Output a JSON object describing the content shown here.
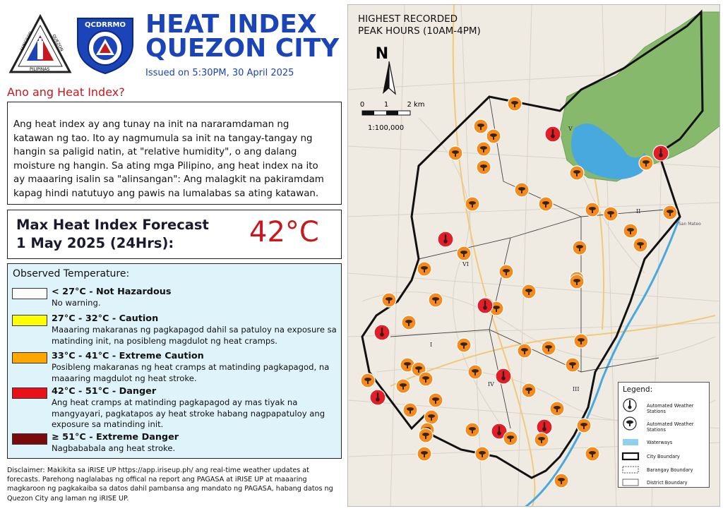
{
  "header": {
    "seal_left_text_top": "LUNGSOD",
    "seal_left_text_right": "QUEZON",
    "seal_left_text_bottom": "PILIPINAS",
    "seal_right_text": "QCDRRMO",
    "title_line1": "HEAT INDEX",
    "title_line2": "QUEZON CITY",
    "issued": "Issued on 5:30PM, 30 April 2025"
  },
  "about": {
    "heading": "Ano ang Heat Index?",
    "lines": [
      "Ang heat index ay ang tunay na init na nararamdaman ng",
      "katawan ng tao. Ito ay nagmumula sa init na tangay-tangay ng",
      "hangin sa paligid natin, at \"relative humidity\", o ang dalang",
      "moisture ng hangin. Sa ating mga Pilipino, ang heat index na ito",
      "ay maaaring isalin sa \"alinsangan\": Ang malagkit na pakiramdam",
      "kapag hindi natutuyo ang pawis na lumalabas sa ating katawan."
    ]
  },
  "forecast": {
    "label_line1": "Max Heat Index Forecast",
    "label_line2": "1 May 2025 (24Hrs):",
    "value": "42°C"
  },
  "observed": {
    "title": "Observed Temperature:",
    "levels": [
      {
        "color": "#ffffff",
        "title": "< 27°C - Not Hazardous",
        "desc": [
          "No warning."
        ]
      },
      {
        "color": "#ffff00",
        "title": "27°C - 32°C - Caution",
        "desc": [
          "Maaaring makaranas ng pagkapagod dahil sa patuloy na exposure sa",
          "matinding init, na posibleng magdulot ng heat cramps."
        ]
      },
      {
        "color": "#ffa500",
        "title": "33°C - 41°C - Extreme Caution",
        "desc": [
          "Posibleng makaranas ng heat cramps at matinding pagkapagod, na",
          "maaaring magdulot ng heat stroke."
        ]
      },
      {
        "color": "#e8101a",
        "title": "42°C - 51°C - Danger",
        "desc": [
          "Ang heat cramps at matinding pagkapagod ay mas tiyak na",
          "mangyayari, pagkatapos ay heat stroke habang nagpapatuloy ang",
          "exposure sa matinding init."
        ]
      },
      {
        "color": "#7b0a0a",
        "title": "≥ 51°C - Extreme Danger",
        "desc": [
          "Nagbababala ang heat stroke."
        ]
      }
    ]
  },
  "disclaimer": {
    "lines": [
      "Disclaimer: Makikita sa iRISE UP https://app.iriseup.ph/ ang real-time weather updates at",
      "forecasts. Parehong naglalabas ng offical na report ang PAGASA at iRISE UP at maaaring",
      "magkaroon ng pagkakaiba sa datos dahil pambansa ang mandato ng PAGASA, habang datos ng",
      "Quezon City ang laman ng iRISE UP."
    ]
  },
  "map": {
    "title_line1": "HIGHEST RECORDED",
    "title_line2": "PEAK HOURS (10AM-4PM)",
    "north": "N",
    "scale_labels": [
      "0",
      "1",
      "2 km"
    ],
    "scale_ratio": "1:100,000",
    "district_labels": [
      "I",
      "II",
      "III",
      "IV",
      "V",
      "VI"
    ],
    "place_label": "San Mateo",
    "colors": {
      "orange": "#f58a1f",
      "red": "#e41e26",
      "forest": "#86b96b",
      "water": "#47a9dd"
    },
    "legend": {
      "title": "Legend:",
      "items": [
        "Automated Weather Stations",
        "Automated Weather Stations",
        "Waterways",
        "City Boundary",
        "Barangay Boundary",
        "District Boundary"
      ]
    }
  }
}
